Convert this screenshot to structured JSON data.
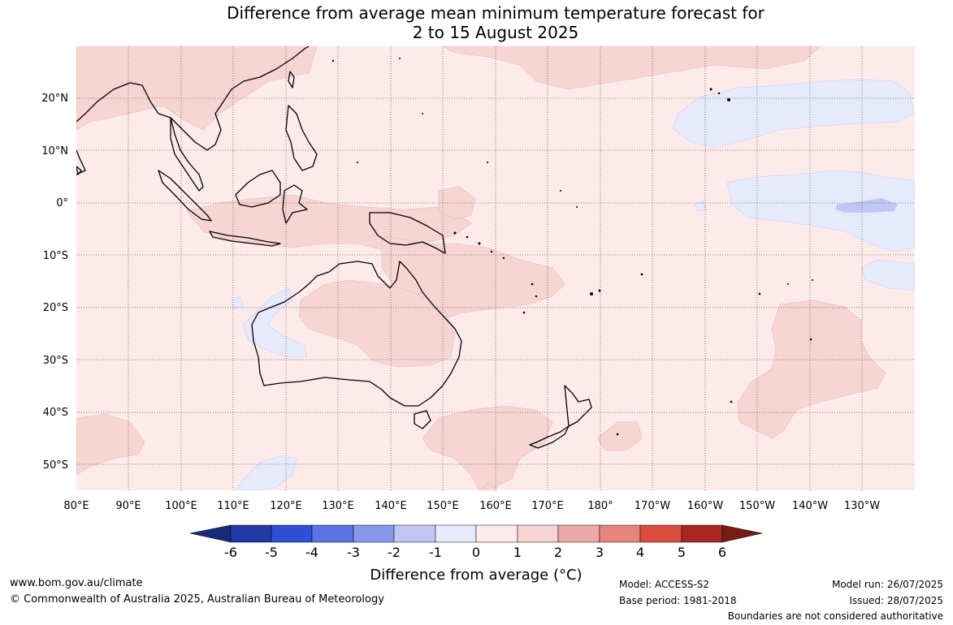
{
  "title": {
    "line1": "Difference from average mean minimum temperature forecast for",
    "line2": "2 to 15 August 2025"
  },
  "map": {
    "lon_ticks": [
      "80°E",
      "90°E",
      "100°E",
      "110°E",
      "120°E",
      "130°E",
      "140°E",
      "150°E",
      "160°E",
      "170°E",
      "180°",
      "170°W",
      "160°W",
      "150°W",
      "140°W",
      "130°W"
    ],
    "lat_ticks": [
      "20°N",
      "10°N",
      "0°",
      "10°S",
      "20°S",
      "30°S",
      "40°S",
      "50°S"
    ],
    "gridlines": true
  },
  "colorbar": {
    "ticks": [
      "-6",
      "-5",
      "-4",
      "-3",
      "-2",
      "-1",
      "0",
      "1",
      "2",
      "3",
      "4",
      "5",
      "6"
    ],
    "colors": [
      "#1a2a7a",
      "#2339a8",
      "#2f4fd8",
      "#5a74e3",
      "#8797ea",
      "#c0c7f3",
      "#e6eafc",
      "#fcebea",
      "#f6d5d3",
      "#eeaaa5",
      "#e6857d",
      "#db4c3d",
      "#a8281f",
      "#7a1a14"
    ],
    "label": "Difference from average (°C)"
  },
  "footer": {
    "website": "www.bom.gov.au/climate",
    "copyright": "© Commonwealth of Australia 2025, Australian Bureau of Meteorology",
    "model": "Model: ACCESS-S2",
    "base_period": "Base period: 1981-2018",
    "model_run": "Model run: 26/07/2025",
    "issued": "Issued: 28/07/2025",
    "disclaimer": "Boundaries are not considered authoritative"
  }
}
